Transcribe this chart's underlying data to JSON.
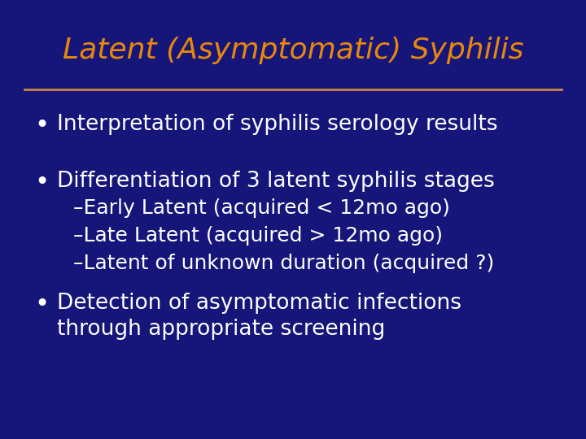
{
  "title": "Latent (Asymptomatic) Syphilis",
  "title_color": "#E8870A",
  "title_fontsize": 26,
  "background_color": "#16167A",
  "line_color": "#CC8844",
  "text_color": "#ffffff",
  "bullet1": "Interpretation of syphilis serology results",
  "bullet2": "Differentiation of 3 latent syphilis stages",
  "sub1": "–Early Latent (acquired < 12mo ago)",
  "sub2": "–Late Latent (acquired > 12mo ago)",
  "sub3": "–Latent of unknown duration (acquired ?)",
  "bullet3_line1": "Detection of asymptomatic infections",
  "bullet3_line2": "through appropriate screening",
  "bullet_fontsize": 19,
  "sub_fontsize": 18
}
